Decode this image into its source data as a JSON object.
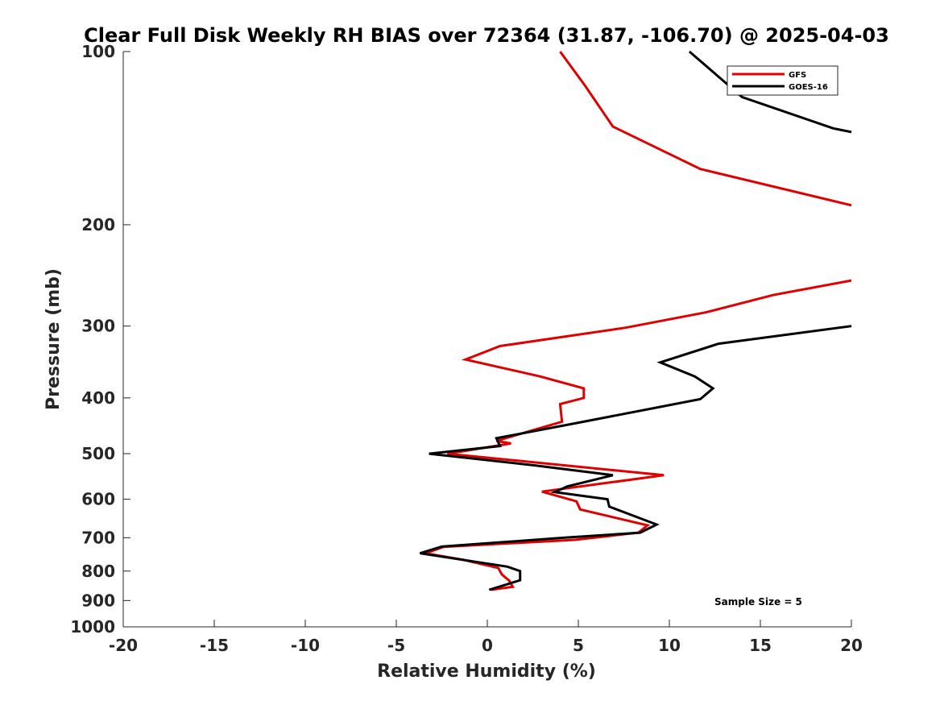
{
  "chart_data": {
    "type": "line",
    "title": "Clear Full Disk Weekly RH BIAS over 72364 (31.87, -106.70) @ 2025-04-03",
    "xlabel": "Relative Humidity (%)",
    "ylabel": "Pressure (mb)",
    "xlim": [
      -20,
      20
    ],
    "ylim": [
      1000,
      100
    ],
    "yscale": "log",
    "xticks": [
      -20,
      -15,
      -10,
      -5,
      0,
      5,
      10,
      15,
      20
    ],
    "xtick_labels": [
      "-20",
      "-15",
      "-10",
      "-5",
      "0",
      "5",
      "10",
      "15",
      "20"
    ],
    "yticks": [
      100,
      200,
      300,
      400,
      500,
      600,
      700,
      800,
      900,
      1000
    ],
    "ytick_labels": [
      "100",
      "200",
      "300",
      "400",
      "500",
      "600",
      "700",
      "800",
      "900",
      "1000"
    ],
    "grid": false,
    "legend_position": "top-right",
    "annotation": "Sample Size = 5",
    "series": [
      {
        "name": "GFS",
        "color": "#e00000",
        "points": [
          [
            4.0,
            100
          ],
          [
            5.4,
            115
          ],
          [
            6.9,
            135
          ],
          [
            11.7,
            160
          ],
          [
            20,
            185
          ],
          [
            null,
            225
          ],
          [
            20,
            250
          ],
          [
            15.7,
            265
          ],
          [
            12.0,
            284
          ],
          [
            7.6,
            302
          ],
          [
            0.7,
            325
          ],
          [
            -1.2,
            343
          ],
          [
            2.9,
            367
          ],
          [
            5.3,
            385
          ],
          [
            5.3,
            400
          ],
          [
            4.0,
            410
          ],
          [
            4.1,
            440
          ],
          [
            0.5,
            475
          ],
          [
            1.3,
            480
          ],
          [
            -2.2,
            500
          ],
          [
            9.7,
            545
          ],
          [
            3.0,
            582
          ],
          [
            4.9,
            605
          ],
          [
            5.1,
            625
          ],
          [
            8.8,
            666
          ],
          [
            8.3,
            686
          ],
          [
            4.8,
            706
          ],
          [
            -2.4,
            726
          ],
          [
            -3.4,
            745
          ],
          [
            -1.3,
            765
          ],
          [
            0.6,
            790
          ],
          [
            0.8,
            811
          ],
          [
            1.2,
            831
          ],
          [
            1.4,
            852
          ],
          [
            0.2,
            862
          ]
        ]
      },
      {
        "name": "GOES-16",
        "color": "#000000",
        "points": [
          [
            11.1,
            100
          ],
          [
            14.0,
            120
          ],
          [
            19.0,
            136
          ],
          [
            20,
            138
          ],
          [
            null,
            220
          ],
          [
            20,
            300
          ],
          [
            12.7,
            322
          ],
          [
            9.5,
            347
          ],
          [
            11.4,
            367
          ],
          [
            12.4,
            385
          ],
          [
            11.7,
            402
          ],
          [
            4.8,
            443
          ],
          [
            0.5,
            470
          ],
          [
            0.7,
            485
          ],
          [
            -3.2,
            500
          ],
          [
            2.6,
            524
          ],
          [
            6.9,
            545
          ],
          [
            4.4,
            570
          ],
          [
            3.7,
            583
          ],
          [
            6.6,
            600
          ],
          [
            6.7,
            618
          ],
          [
            9.3,
            664
          ],
          [
            8.4,
            686
          ],
          [
            4.2,
            700
          ],
          [
            -2.5,
            725
          ],
          [
            -3.7,
            745
          ],
          [
            1.1,
            786
          ],
          [
            1.8,
            800
          ],
          [
            1.8,
            830
          ],
          [
            0.1,
            862
          ]
        ]
      }
    ]
  }
}
